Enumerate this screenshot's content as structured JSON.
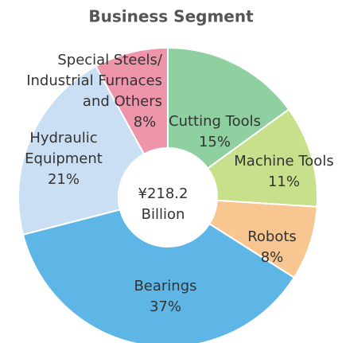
{
  "chart_data": {
    "type": "donut",
    "title": "Business Segment",
    "center_label": [
      "¥218.2",
      "Billion"
    ],
    "categories": [
      [
        "Cutting Tools"
      ],
      [
        "Machine Tools"
      ],
      [
        "Robots"
      ],
      [
        "Bearings"
      ],
      [
        "Hydraulic",
        "Equipment"
      ],
      [
        "Special Steels/",
        "Industrial Furnaces",
        "and Others"
      ]
    ],
    "values": [
      15,
      11,
      8,
      37,
      21,
      8
    ],
    "value_labels": [
      "15%",
      "11%",
      "8%",
      "37%",
      "21%",
      "8%"
    ],
    "colors": [
      "#8fd0a0",
      "#c8e08c",
      "#f8c690",
      "#5db6e6",
      "#cadff3",
      "#ef95ab"
    ]
  }
}
